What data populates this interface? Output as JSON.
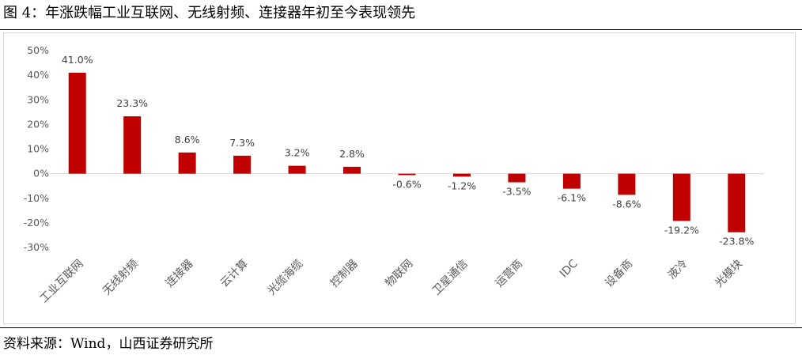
{
  "figure": {
    "title": "图 4：年涨跌幅工业互联网、无线射频、连接器年初至今表现领先",
    "source": "资料来源：Wind，山西证券研究所"
  },
  "chart_data": {
    "type": "bar",
    "categories": [
      "工业互联网",
      "无线射频",
      "连接器",
      "云计算",
      "光缆海缆",
      "控制器",
      "物联网",
      "卫星通信",
      "运营商",
      "IDC",
      "设备商",
      "液冷",
      "光模块"
    ],
    "values": [
      41.0,
      23.3,
      8.6,
      7.3,
      3.2,
      2.8,
      -0.6,
      -1.2,
      -3.5,
      -6.1,
      -8.6,
      -19.2,
      -23.8
    ],
    "data_labels": [
      "41.0%",
      "23.3%",
      "8.6%",
      "7.3%",
      "3.2%",
      "2.8%",
      "-0.6%",
      "-1.2%",
      "-3.5%",
      "-6.1%",
      "-8.6%",
      "-19.2%",
      "-23.8%"
    ],
    "yticks": [
      50,
      40,
      30,
      20,
      10,
      0,
      -10,
      -20,
      -30
    ],
    "ytick_labels": [
      "50%",
      "40%",
      "30%",
      "20%",
      "10%",
      "0%",
      "-10%",
      "-20%",
      "-30%"
    ],
    "ylim": [
      -30,
      50
    ],
    "grid": false,
    "bar_color": "#c00000",
    "axis_color": "#d9d9d9"
  }
}
